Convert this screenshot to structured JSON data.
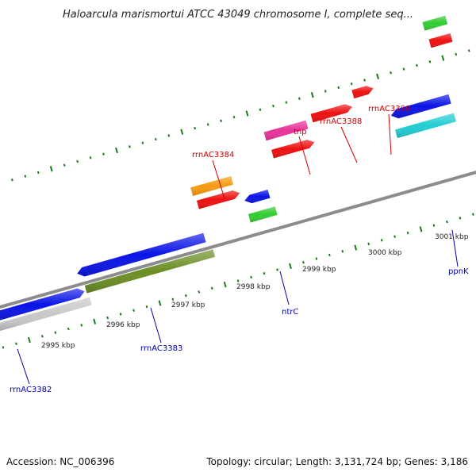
{
  "title": "Haloarcula marismortui ATCC 43049 chromosome I, complete seq...",
  "footer": {
    "accession": "Accession: NC_006396",
    "summary": "Topology: circular; Length: 3,131,724 bp; Genes: 3,186"
  },
  "scale_labels": [
    "2995 kbp",
    "2996 kbp",
    "2997 kbp",
    "2998 kbp",
    "2999 kbp",
    "3000 kbp",
    "3001 kbp"
  ],
  "gene_labels": [
    {
      "text": "rrnAC3384",
      "color": "#cc0000"
    },
    {
      "text": "tnp",
      "color": "#cc0000"
    },
    {
      "text": "rrnAC3388",
      "color": "#cc0000"
    },
    {
      "text": "rrnAC3390",
      "color": "#cc0000"
    },
    {
      "text": "ntrC",
      "color": "#0000aa"
    },
    {
      "text": "ppnK",
      "color": "#0000aa"
    },
    {
      "text": "rrnAC3383",
      "color": "#0000aa"
    },
    {
      "text": "rrnAC3382",
      "color": "#0000aa"
    }
  ],
  "feature_colors": {
    "blue": "#0a14e6",
    "red": "#ee1010",
    "orange": "#f59a12",
    "magenta": "#e8339a",
    "green": "#33cc33",
    "cyan": "#22ccd4",
    "olive": "#6b8e23",
    "gray": "#c8c8c8",
    "backbone": "#8c8c8c",
    "ticks": "#1a7a1a"
  }
}
